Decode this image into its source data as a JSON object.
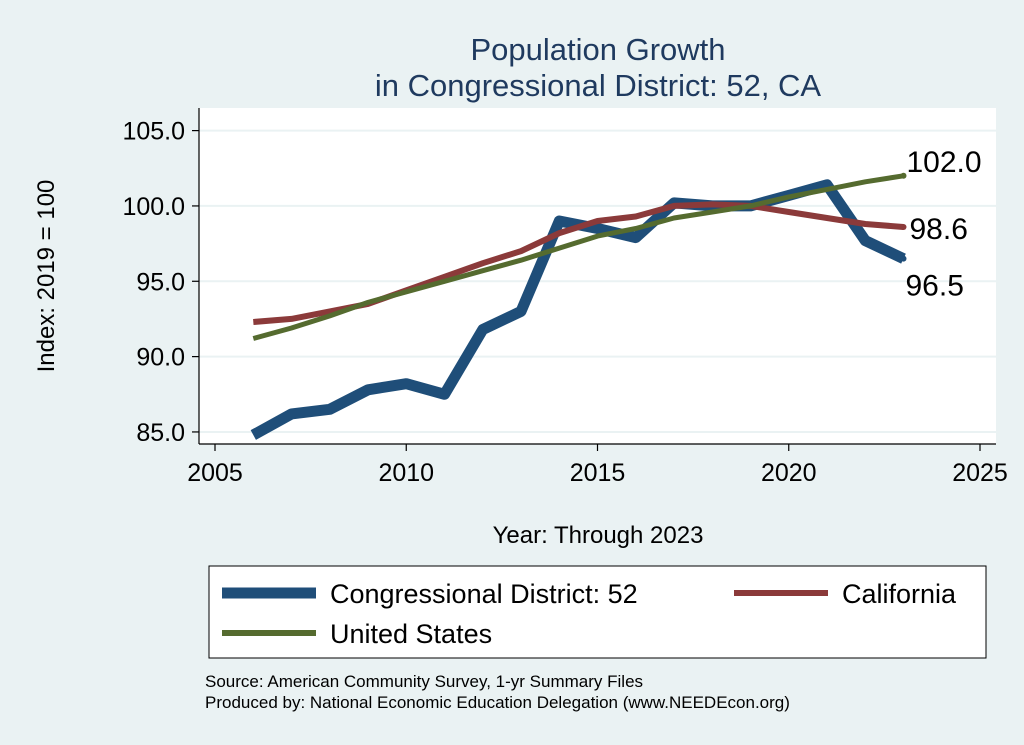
{
  "chart_data": {
    "type": "line",
    "title_line1": "Population Growth",
    "title_line2": "in Congressional District: 52, CA",
    "xlabel": "Year: Through 2023",
    "ylabel": "Index: 2019 = 100",
    "xlim": [
      2005,
      2025
    ],
    "ylim": [
      84.2,
      106.5
    ],
    "xticks": [
      2005,
      2010,
      2015,
      2020,
      2025
    ],
    "yticks": [
      85,
      90,
      95,
      100,
      105
    ],
    "ytick_labels": [
      "85.0",
      "90.0",
      "95.0",
      "100.0",
      "105.0"
    ],
    "x": [
      2006,
      2007,
      2008,
      2009,
      2010,
      2011,
      2012,
      2013,
      2014,
      2015,
      2016,
      2017,
      2018,
      2019,
      2020,
      2021,
      2022,
      2023
    ],
    "series": [
      {
        "name": "Congressional District: 52",
        "color": "#1f4e79",
        "values": [
          84.8,
          86.2,
          86.5,
          87.8,
          88.2,
          87.5,
          91.8,
          93.0,
          99.0,
          98.5,
          97.9,
          100.2,
          100.0,
          100.0,
          100.7,
          101.4,
          97.7,
          96.5
        ],
        "end_label": "96.5"
      },
      {
        "name": "California",
        "color": "#8b3a3a",
        "values": [
          92.3,
          92.5,
          93.0,
          93.5,
          94.4,
          95.3,
          96.2,
          97.0,
          98.2,
          99.0,
          99.3,
          100.0,
          100.1,
          100.0,
          99.6,
          99.2,
          98.8,
          98.6
        ],
        "end_label": "98.6"
      },
      {
        "name": "United States",
        "color": "#556b2f",
        "values": [
          91.2,
          91.9,
          92.7,
          93.6,
          94.3,
          95.0,
          95.7,
          96.4,
          97.2,
          98.0,
          98.5,
          99.2,
          99.6,
          100.0,
          100.6,
          101.1,
          101.6,
          102.0
        ],
        "end_label": "102.0"
      }
    ],
    "legend": [
      {
        "label": "Congressional District: 52"
      },
      {
        "label": "California"
      },
      {
        "label": "United States"
      }
    ],
    "source_line1": "Source: American Community Survey, 1-yr Summary Files",
    "source_line2": "Produced by: National Economic Education Delegation (www.NEEDEcon.org)",
    "colors": {
      "background": "#eaf2f3",
      "plot_bg": "#ffffff",
      "grid": "#eaf2f3",
      "title": "#1f3a5f"
    }
  }
}
